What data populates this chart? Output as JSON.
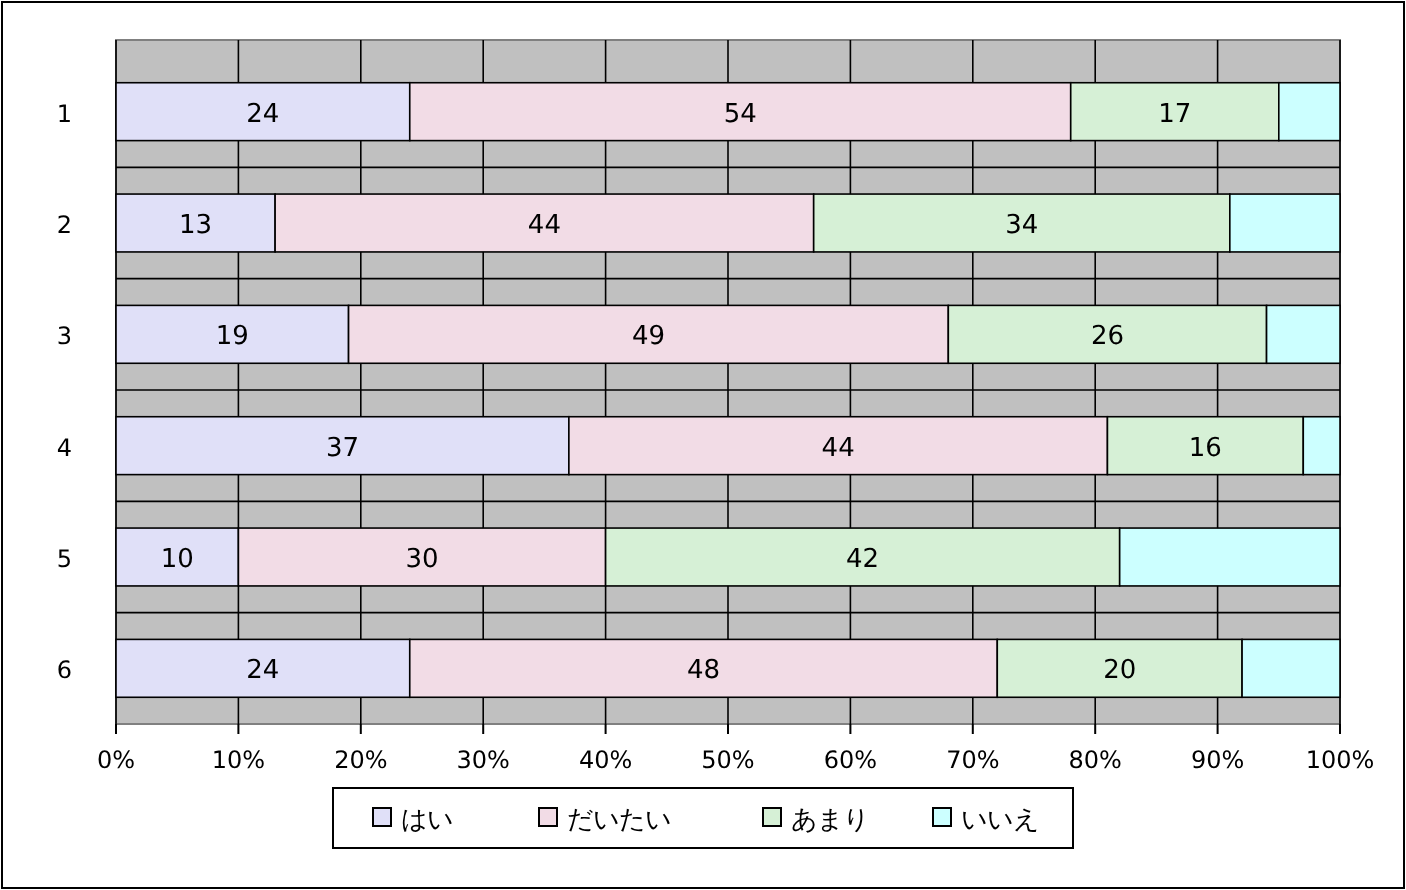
{
  "chart_data": {
    "type": "bar",
    "orientation": "horizontal",
    "stacked": true,
    "categories": [
      "1",
      "2",
      "3",
      "4",
      "5",
      "6"
    ],
    "series": [
      {
        "name": "はい",
        "color": "#e0e0f8",
        "values": [
          24,
          13,
          19,
          37,
          10,
          24
        ],
        "value_labels": [
          "24",
          "13",
          "19",
          "37",
          "10",
          "24"
        ]
      },
      {
        "name": "だいたい",
        "color": "#f2dce6",
        "values": [
          54,
          44,
          49,
          44,
          30,
          48
        ],
        "value_labels": [
          "54",
          "44",
          "49",
          "44",
          "30",
          "48"
        ]
      },
      {
        "name": "あまり",
        "color": "#d6f0d6",
        "values": [
          17,
          34,
          26,
          16,
          42,
          20
        ],
        "value_labels": [
          "17",
          "34",
          "26",
          "16",
          "42",
          "20"
        ]
      },
      {
        "name": "いいえ",
        "color": "#ccffff",
        "values": [
          5,
          9,
          6,
          3,
          18,
          8
        ]
      }
    ],
    "xlim": [
      0,
      100
    ],
    "xticks": [
      {
        "value": 0,
        "label": "0%"
      },
      {
        "value": 10,
        "label": "10%"
      },
      {
        "value": 20,
        "label": "20%"
      },
      {
        "value": 30,
        "label": "30%"
      },
      {
        "value": 40,
        "label": "40%"
      },
      {
        "value": 50,
        "label": "50%"
      },
      {
        "value": 60,
        "label": "60%"
      },
      {
        "value": 70,
        "label": "70%"
      },
      {
        "value": 80,
        "label": "80%"
      },
      {
        "value": 90,
        "label": "90%"
      },
      {
        "value": 100,
        "label": "100%"
      }
    ],
    "grid": true,
    "legend": "bottom"
  }
}
